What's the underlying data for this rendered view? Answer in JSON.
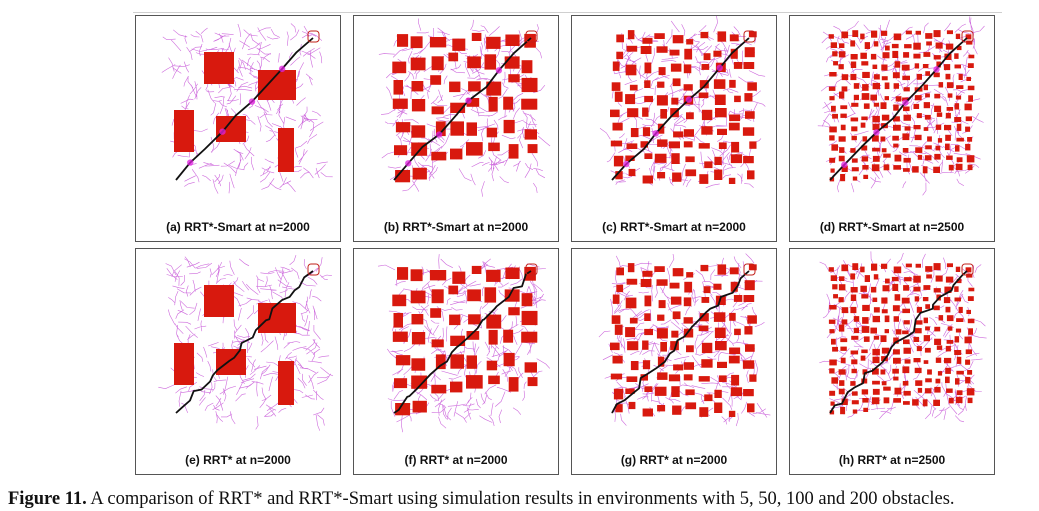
{
  "panels": [
    {
      "id": "a",
      "caption": "(a) RRT*-Smart at n=2000",
      "obstacles": 5,
      "smart": true
    },
    {
      "id": "b",
      "caption": "(b) RRT*-Smart at n=2000",
      "obstacles": 50,
      "smart": true
    },
    {
      "id": "c",
      "caption": "(c) RRT*-Smart at n=2000",
      "obstacles": 100,
      "smart": true
    },
    {
      "id": "d",
      "caption": "(d) RRT*-Smart at n=2500",
      "obstacles": 200,
      "smart": true
    },
    {
      "id": "e",
      "caption": "(e) RRT* at n=2000",
      "obstacles": 5,
      "smart": false
    },
    {
      "id": "f",
      "caption": "(f) RRT* at n=2000",
      "obstacles": 50,
      "smart": false
    },
    {
      "id": "g",
      "caption": "(g) RRT* at n=2000",
      "obstacles": 100,
      "smart": false
    },
    {
      "id": "h",
      "caption": "(h) RRT* at n=2500",
      "obstacles": 200,
      "smart": false
    }
  ],
  "figure": {
    "label": "Figure 11.",
    "text": " A comparison of RRT* and RRT*-Smart using simulation results in environments with 5, 50, 100 and 200 obstacles."
  },
  "colors": {
    "obstacle": "#d8190e",
    "tree": "#c44fd6",
    "path": "#111111",
    "beacon": "#e020e0",
    "goal": "#c2201a"
  }
}
